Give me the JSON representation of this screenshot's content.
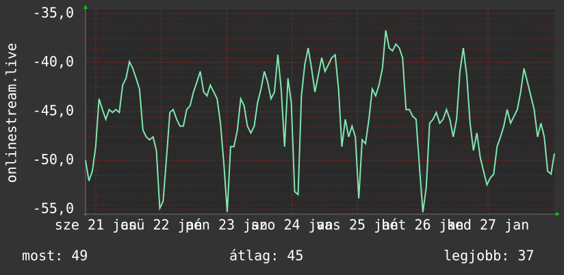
{
  "chart_data": {
    "type": "line",
    "title": "onlinestream.live",
    "color": "#7fe8b0",
    "ylim": [
      -55.5,
      -34.5
    ],
    "yticks": [
      {
        "value": -35,
        "label": "-35,0"
      },
      {
        "value": -40,
        "label": "-40,0"
      },
      {
        "value": -45,
        "label": "-45,0"
      },
      {
        "value": -50,
        "label": "-50,0"
      },
      {
        "value": -55,
        "label": "-55,0"
      }
    ],
    "grid": true,
    "xtick_labels": [
      "sze 21 jan",
      "csü 22 jan",
      "pén 23 jan",
      "szo 24 jan",
      "vas 25 jan",
      "hét 26 jan",
      "ked 27 jan"
    ],
    "values": [
      -50.0,
      -52.1,
      -51.1,
      -48.6,
      -43.7,
      -44.8,
      -45.8,
      -44.8,
      -45.1,
      -44.8,
      -45.1,
      -42.3,
      -41.6,
      -39.9,
      -40.6,
      -41.6,
      -42.7,
      -46.9,
      -47.6,
      -47.9,
      -47.6,
      -49.0,
      -54.9,
      -54.2,
      -49.7,
      -45.1,
      -44.8,
      -45.8,
      -46.5,
      -46.5,
      -44.8,
      -44.4,
      -43.0,
      -42.0,
      -40.9,
      -43.0,
      -43.4,
      -42.3,
      -43.0,
      -43.7,
      -46.2,
      -50.4,
      -55.3,
      -48.6,
      -48.6,
      -46.9,
      -43.7,
      -44.4,
      -46.5,
      -47.2,
      -46.5,
      -44.1,
      -42.7,
      -40.9,
      -42.0,
      -43.7,
      -43.0,
      -39.2,
      -42.7,
      -48.6,
      -41.6,
      -44.1,
      -53.2,
      -53.5,
      -43.4,
      -40.2,
      -38.5,
      -40.6,
      -43.0,
      -41.3,
      -39.5,
      -40.9,
      -40.2,
      -39.5,
      -39.2,
      -42.7,
      -48.6,
      -45.8,
      -47.6,
      -46.5,
      -47.6,
      -53.9,
      -47.9,
      -48.3,
      -45.8,
      -42.7,
      -43.4,
      -42.3,
      -40.6,
      -36.7,
      -38.5,
      -38.8,
      -38.1,
      -38.5,
      -39.5,
      -44.8,
      -44.8,
      -45.5,
      -45.8,
      -50.7,
      -55.3,
      -52.8,
      -46.2,
      -45.8,
      -45.1,
      -46.2,
      -45.8,
      -44.8,
      -45.8,
      -47.6,
      -45.8,
      -40.9,
      -38.5,
      -41.3,
      -46.2,
      -49.0,
      -47.2,
      -49.7,
      -51.1,
      -52.5,
      -51.8,
      -51.4,
      -48.6,
      -47.6,
      -46.5,
      -44.8,
      -46.2,
      -45.5,
      -44.8,
      -43.0,
      -40.6,
      -42.0,
      -43.4,
      -44.8,
      -47.6,
      -46.2,
      -47.6,
      -51.1,
      -51.4,
      -49.3
    ],
    "footer": [
      "most: 49",
      "átlag: 45",
      "legjobb: 37"
    ]
  }
}
